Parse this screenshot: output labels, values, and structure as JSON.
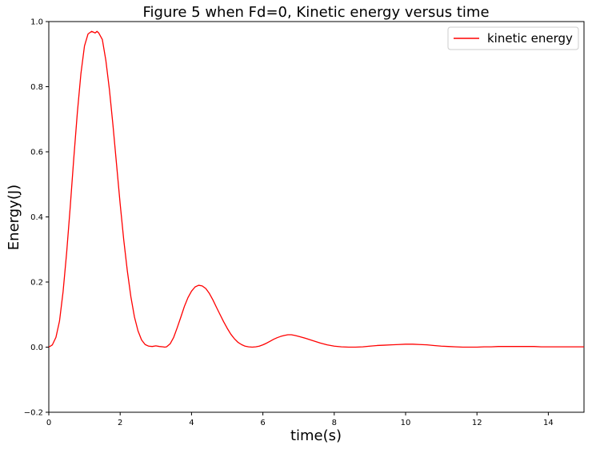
{
  "chart_data": {
    "type": "line",
    "title": "Figure 5 when Fd=0, Kinetic energy versus time",
    "xlabel": "time(s)",
    "ylabel": "Energy(J)",
    "xlim": [
      0,
      15
    ],
    "ylim": [
      -0.2,
      1.0
    ],
    "xticks": [
      0,
      2,
      4,
      6,
      8,
      10,
      12,
      14
    ],
    "yticks": [
      -0.2,
      0.0,
      0.2,
      0.4,
      0.6,
      0.8,
      1.0
    ],
    "xtick_labels": [
      "0",
      "2",
      "4",
      "6",
      "8",
      "10",
      "12",
      "14"
    ],
    "ytick_labels": [
      "−0.2",
      "0.0",
      "0.2",
      "0.4",
      "0.6",
      "0.8",
      "1.0"
    ],
    "grid": false,
    "legend_position": "top-right",
    "series": [
      {
        "name": "kinetic energy",
        "color": "#ff0000",
        "x": [
          0,
          0.1,
          0.2,
          0.3,
          0.4,
          0.5,
          0.6,
          0.7,
          0.8,
          0.9,
          1.0,
          1.1,
          1.2,
          1.3,
          1.35,
          1.4,
          1.5,
          1.6,
          1.7,
          1.8,
          1.9,
          2.0,
          2.1,
          2.2,
          2.3,
          2.4,
          2.5,
          2.6,
          2.7,
          2.8,
          2.9,
          3.0,
          3.1,
          3.2,
          3.25,
          3.3,
          3.4,
          3.5,
          3.6,
          3.7,
          3.8,
          3.9,
          4.0,
          4.1,
          4.2,
          4.3,
          4.4,
          4.5,
          4.6,
          4.7,
          4.8,
          4.9,
          5.0,
          5.1,
          5.2,
          5.3,
          5.4,
          5.5,
          5.6,
          5.7,
          5.8,
          5.9,
          6.0,
          6.1,
          6.2,
          6.3,
          6.4,
          6.5,
          6.6,
          6.7,
          6.8,
          6.9,
          7.0,
          7.2,
          7.4,
          7.6,
          7.8,
          8.0,
          8.2,
          8.4,
          8.6,
          8.8,
          9.0,
          9.2,
          9.4,
          9.6,
          9.8,
          10.0,
          10.2,
          10.4,
          10.6,
          10.8,
          11.0,
          11.2,
          11.4,
          11.6,
          11.8,
          12.0,
          12.2,
          12.4,
          12.6,
          12.8,
          13.0,
          13.2,
          13.4,
          13.6,
          13.8,
          14.0,
          14.2,
          14.4,
          14.6,
          14.8,
          15.0
        ],
        "y": [
          0.0,
          0.007,
          0.03,
          0.08,
          0.17,
          0.29,
          0.43,
          0.58,
          0.72,
          0.84,
          0.925,
          0.962,
          0.97,
          0.965,
          0.97,
          0.965,
          0.945,
          0.88,
          0.79,
          0.68,
          0.56,
          0.44,
          0.33,
          0.235,
          0.155,
          0.093,
          0.05,
          0.022,
          0.008,
          0.003,
          0.002,
          0.004,
          0.002,
          0.001,
          0.0,
          0.001,
          0.01,
          0.03,
          0.06,
          0.092,
          0.125,
          0.152,
          0.172,
          0.185,
          0.19,
          0.188,
          0.18,
          0.165,
          0.145,
          0.122,
          0.1,
          0.078,
          0.058,
          0.04,
          0.026,
          0.015,
          0.008,
          0.003,
          0.001,
          0.0,
          0.001,
          0.003,
          0.007,
          0.012,
          0.018,
          0.024,
          0.029,
          0.033,
          0.036,
          0.038,
          0.038,
          0.036,
          0.033,
          0.027,
          0.02,
          0.013,
          0.007,
          0.003,
          0.001,
          0.0,
          0.0,
          0.001,
          0.003,
          0.005,
          0.006,
          0.007,
          0.008,
          0.009,
          0.009,
          0.008,
          0.007,
          0.005,
          0.003,
          0.002,
          0.001,
          0.0,
          0.0,
          0.0,
          0.001,
          0.001,
          0.002,
          0.002,
          0.002,
          0.002,
          0.002,
          0.002,
          0.001,
          0.001,
          0.001,
          0.001,
          0.001,
          0.001,
          0.001
        ]
      }
    ]
  }
}
